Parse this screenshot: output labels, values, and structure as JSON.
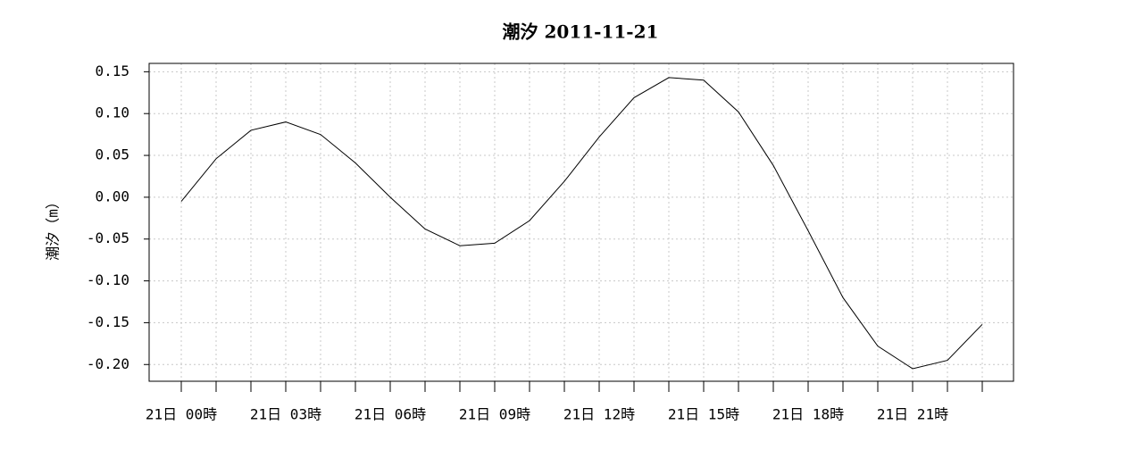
{
  "chart_data": {
    "type": "line",
    "title": "潮汐 2011-11-21",
    "y_label": "潮汐（m）",
    "categories": [
      "21日 00時",
      null,
      null,
      "21日 03時",
      null,
      null,
      "21日 06時",
      null,
      null,
      "21日 09時",
      null,
      null,
      "21日 12時",
      null,
      null,
      "21日 15時",
      null,
      null,
      "21日 18時",
      null,
      null,
      "21日 21時",
      null,
      null
    ],
    "series": [
      {
        "color": "#000000",
        "values": [
          -0.005,
          0.046,
          0.08,
          0.09,
          0.075,
          0.041,
          0.0,
          -0.038,
          -0.058,
          -0.055,
          -0.028,
          0.019,
          0.072,
          0.119,
          0.143,
          0.14,
          0.102,
          0.038,
          -0.04,
          -0.12,
          -0.178,
          -0.205,
          -0.195,
          -0.152
        ]
      }
    ],
    "ylim": [
      -0.22,
      0.16
    ],
    "yticks": [
      {
        "value": 0.15,
        "label": "0.15"
      },
      {
        "value": 0.1,
        "label": "0.10"
      },
      {
        "value": 0.05,
        "label": "0.05"
      },
      {
        "value": 0,
        "label": "0.00"
      },
      {
        "value": -0.05,
        "label": "-0.05"
      },
      {
        "value": -0.1,
        "label": "-0.10"
      },
      {
        "value": -0.15,
        "label": "-0.15"
      },
      {
        "value": -0.2,
        "label": "-0.20"
      }
    ],
    "grid": true
  }
}
